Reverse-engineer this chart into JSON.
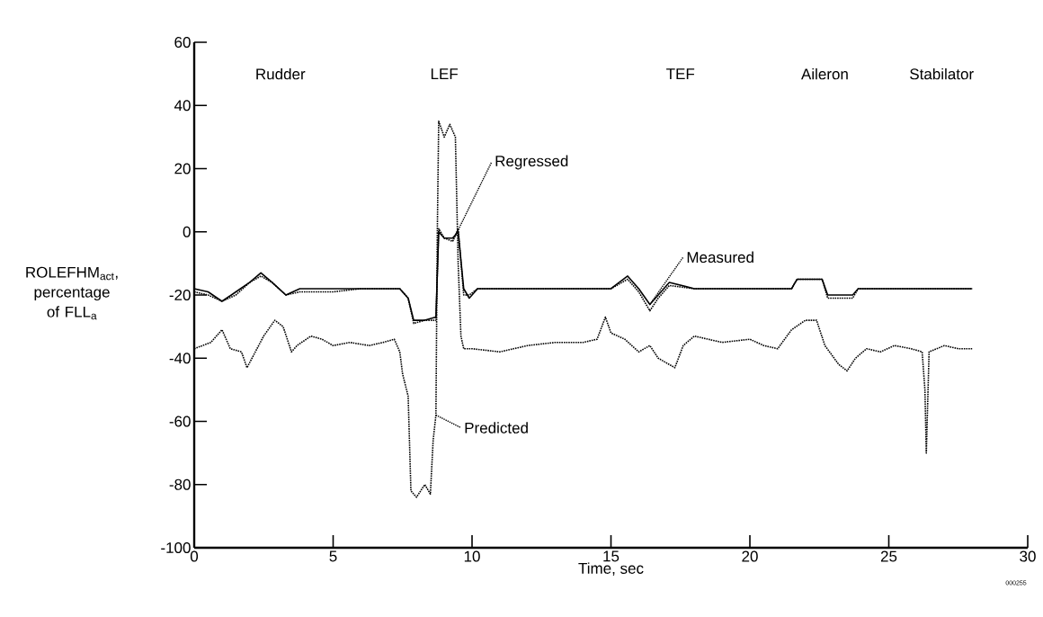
{
  "chart_data": {
    "type": "line",
    "xlabel": "Time, sec",
    "ylabel": "ROLEFHM$_{act}$, percentage of FLL$_{a}$",
    "xlim": [
      0,
      30
    ],
    "xticks": [
      0,
      5,
      10,
      15,
      20,
      25,
      30
    ],
    "ylim": [
      -100,
      60
    ],
    "yticks": [
      -100,
      -80,
      -60,
      -40,
      -20,
      0,
      20,
      40,
      60
    ],
    "grid": false,
    "marker": "none",
    "series": [
      {
        "name": "Measured",
        "color": "#000000",
        "line_style": "solid",
        "x": [
          0,
          0.5,
          1.0,
          1.5,
          2.0,
          2.4,
          2.8,
          3.3,
          3.8,
          5,
          6,
          7.4,
          7.7,
          7.9,
          8.3,
          8.7,
          8.8,
          9.0,
          9.3,
          9.5,
          9.7,
          9.9,
          10.2,
          12,
          14,
          15.0,
          15.6,
          16.0,
          16.4,
          16.7,
          17.1,
          18,
          20,
          21.5,
          21.7,
          22.6,
          22.8,
          23.7,
          23.9,
          26,
          28
        ],
        "values": [
          -18,
          -19,
          -22,
          -19,
          -16,
          -13,
          -16,
          -20,
          -18,
          -18,
          -18,
          -18,
          -21,
          -28,
          -28,
          -27,
          0,
          -2,
          -2,
          0,
          -18,
          -21,
          -18,
          -18,
          -18,
          -18,
          -14,
          -18,
          -23,
          -20,
          -16,
          -18,
          -18,
          -18,
          -15,
          -15,
          -20,
          -20,
          -18,
          -18,
          -18
        ]
      },
      {
        "name": "Regressed",
        "color": "#000000",
        "line_style": "dotted",
        "x": [
          0,
          0.5,
          1.0,
          1.5,
          2.0,
          2.4,
          2.8,
          3.3,
          3.8,
          5,
          6,
          7.4,
          7.7,
          7.9,
          8.3,
          8.7,
          8.8,
          9.0,
          9.3,
          9.5,
          9.7,
          9.9,
          10.2,
          12,
          14,
          15.0,
          15.6,
          16.0,
          16.4,
          16.7,
          17.1,
          18,
          20,
          21.5,
          21.7,
          22.6,
          22.8,
          23.7,
          23.9,
          26,
          28
        ],
        "values": [
          -19,
          -20,
          -22,
          -20,
          -16,
          -14,
          -16,
          -20,
          -19,
          -19,
          -18,
          -18,
          -21,
          -29,
          -28,
          -28,
          1,
          -2,
          -3,
          1,
          -20,
          -20,
          -18,
          -18,
          -18,
          -18,
          -15,
          -19,
          -25,
          -21,
          -17,
          -18,
          -18,
          -18,
          -15,
          -15,
          -21,
          -21,
          -18,
          -18,
          -18
        ]
      },
      {
        "name": "Predicted",
        "color": "#000000",
        "line_style": "dotted",
        "x": [
          0,
          0.6,
          1.0,
          1.3,
          1.7,
          1.9,
          2.2,
          2.5,
          2.9,
          3.2,
          3.5,
          3.7,
          4.2,
          4.6,
          5.0,
          5.6,
          6.3,
          6.8,
          7.2,
          7.4,
          7.5,
          7.7,
          7.8,
          8.0,
          8.3,
          8.5,
          8.6,
          8.7,
          8.75,
          8.8,
          9.0,
          9.2,
          9.4,
          9.5,
          9.6,
          9.7,
          10,
          11,
          12,
          13,
          14,
          14.5,
          14.8,
          15.0,
          15.5,
          16,
          16.4,
          16.7,
          17.1,
          17.3,
          17.6,
          18,
          19,
          20,
          20.5,
          21,
          21.5,
          22.0,
          22.4,
          22.7,
          23.2,
          23.5,
          23.8,
          24.2,
          24.7,
          25.2,
          25.8,
          26.2,
          26.3,
          26.35,
          26.45,
          27,
          27.5,
          28
        ],
        "values": [
          -37,
          -35,
          -31,
          -37,
          -38,
          -43,
          -38,
          -33,
          -28,
          -30,
          -38,
          -36,
          -33,
          -34,
          -36,
          -35,
          -36,
          -35,
          -34,
          -38,
          -45,
          -52,
          -82,
          -84,
          -80,
          -83,
          -66,
          -58,
          0,
          35,
          30,
          34,
          30,
          -10,
          -33,
          -37,
          -37,
          -38,
          -36,
          -35,
          -35,
          -34,
          -27,
          -32,
          -34,
          -38,
          -36,
          -40,
          -42,
          -43,
          -36,
          -33,
          -35,
          -34,
          -36,
          -37,
          -31,
          -28,
          -28,
          -36,
          -42,
          -44,
          -40,
          -37,
          -38,
          -36,
          -37,
          -38,
          -50,
          -70,
          -38,
          -36,
          -37,
          -37
        ]
      }
    ],
    "annotations": [
      "Rudder",
      "LEF",
      "TEF",
      "Aileron",
      "Stabilator",
      "000255"
    ]
  }
}
